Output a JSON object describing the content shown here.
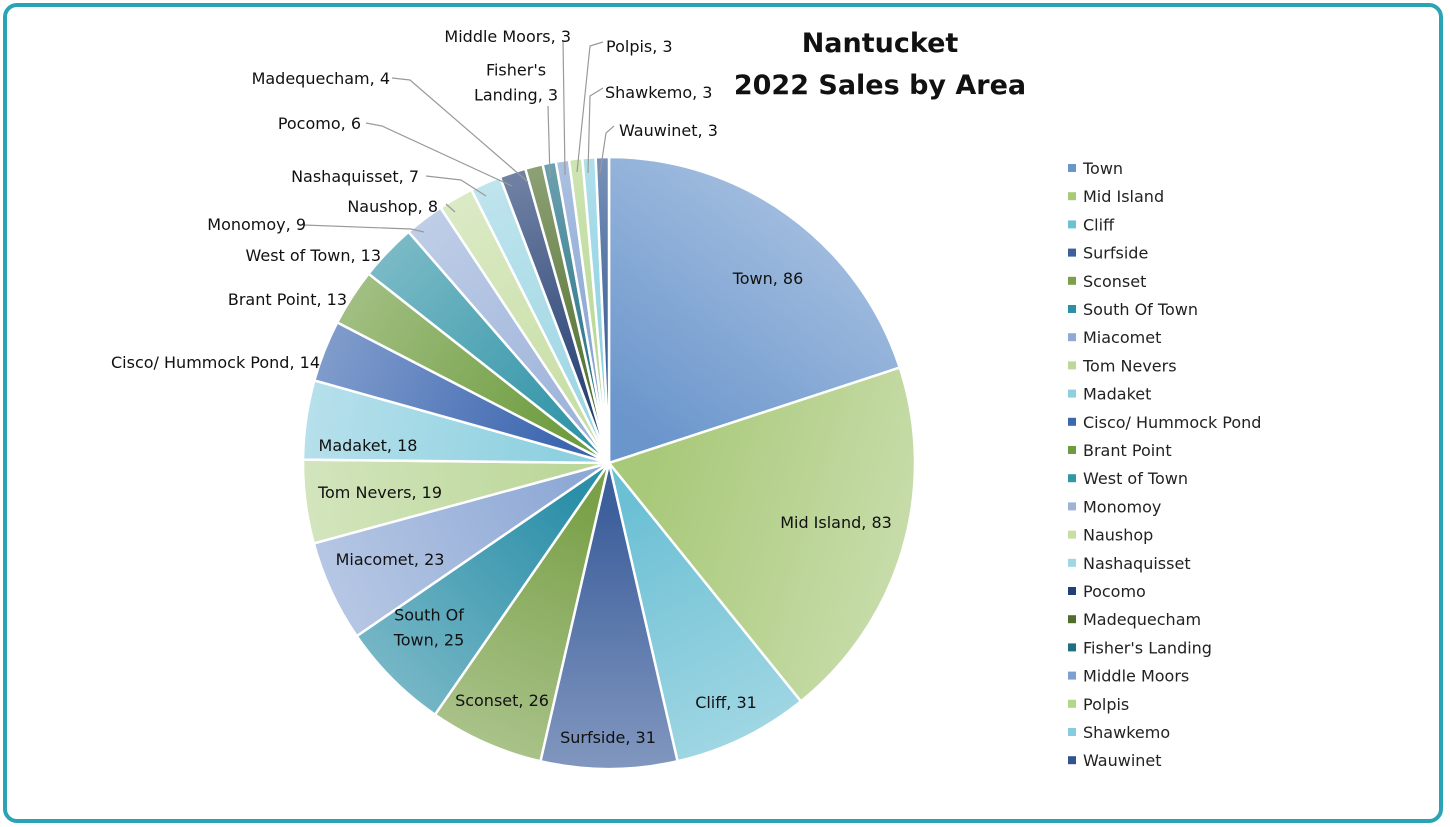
{
  "chart_data": {
    "type": "pie",
    "title_lines": [
      "Nantucket",
      "2022 Sales by Area"
    ],
    "legend_position": "right",
    "slices": [
      {
        "name": "Town",
        "value": 86,
        "color": "#6b96cc",
        "label_lines": [
          "Town, 86"
        ]
      },
      {
        "name": "Mid Island",
        "value": 83,
        "color": "#a9c97a",
        "label_lines": [
          "Mid Island, 83"
        ]
      },
      {
        "name": "Cliff",
        "value": 31,
        "color": "#6cc0d4",
        "label_lines": [
          "Cliff, 31"
        ]
      },
      {
        "name": "Surfside",
        "value": 31,
        "color": "#3d5f9c",
        "label_lines": [
          "Surfside, 31"
        ]
      },
      {
        "name": "Sconset",
        "value": 26,
        "color": "#7aa149",
        "label_lines": [
          "Sconset, 26"
        ]
      },
      {
        "name": "South Of Town",
        "value": 25,
        "color": "#2b8fa8",
        "label_lines": [
          "South Of",
          "Town, 25"
        ]
      },
      {
        "name": "Miacomet",
        "value": 23,
        "color": "#8fa9d6",
        "label_lines": [
          "Miacomet, 23"
        ]
      },
      {
        "name": "Tom Nevers",
        "value": 19,
        "color": "#bcd79a",
        "label_lines": [
          "Tom Nevers, 19"
        ]
      },
      {
        "name": "Madaket",
        "value": 18,
        "color": "#8ed0e0",
        "label_lines": [
          "Madaket, 18"
        ]
      },
      {
        "name": "Cisco/ Hummock Pond",
        "value": 14,
        "color": "#3c66b0",
        "label_lines": [
          "Cisco/ Hummock Pond, 14"
        ]
      },
      {
        "name": "Brant Point",
        "value": 13,
        "color": "#6e9c3e",
        "label_lines": [
          "Brant Point, 13"
        ]
      },
      {
        "name": "West of Town",
        "value": 13,
        "color": "#3295a8",
        "label_lines": [
          "West of Town, 13"
        ]
      },
      {
        "name": "Monomoy",
        "value": 9,
        "color": "#9db3da",
        "label_lines": [
          "Monomoy, 9"
        ]
      },
      {
        "name": "Naushop",
        "value": 8,
        "color": "#c7dea5",
        "label_lines": [
          "Naushop, 8"
        ]
      },
      {
        "name": "Nashaquisset",
        "value": 7,
        "color": "#9dd6e4",
        "label_lines": [
          "Nashaquisset, 7"
        ]
      },
      {
        "name": "Pocomo",
        "value": 6,
        "color": "#253f73",
        "label_lines": [
          "Pocomo, 6"
        ]
      },
      {
        "name": "Madequecham",
        "value": 4,
        "color": "#4f6e2b",
        "label_lines": [
          "Madequecham, 4"
        ]
      },
      {
        "name": "Fisher's Landing",
        "value": 3,
        "color": "#1f6f84",
        "label_lines": [
          "Fisher's",
          "Landing, 3"
        ]
      },
      {
        "name": "Middle Moors",
        "value": 3,
        "color": "#7f9fd0",
        "label_lines": [
          "Middle Moors, 3"
        ]
      },
      {
        "name": "Polpis",
        "value": 3,
        "color": "#b3d58c",
        "label_lines": [
          "Polpis, 3"
        ]
      },
      {
        "name": "Shawkemo",
        "value": 3,
        "color": "#86cde0",
        "label_lines": [
          "Shawkemo, 3"
        ]
      },
      {
        "name": "Wauwinet",
        "value": 3,
        "color": "#2f5590",
        "label_lines": [
          "Wauwinet, 3"
        ]
      }
    ]
  }
}
